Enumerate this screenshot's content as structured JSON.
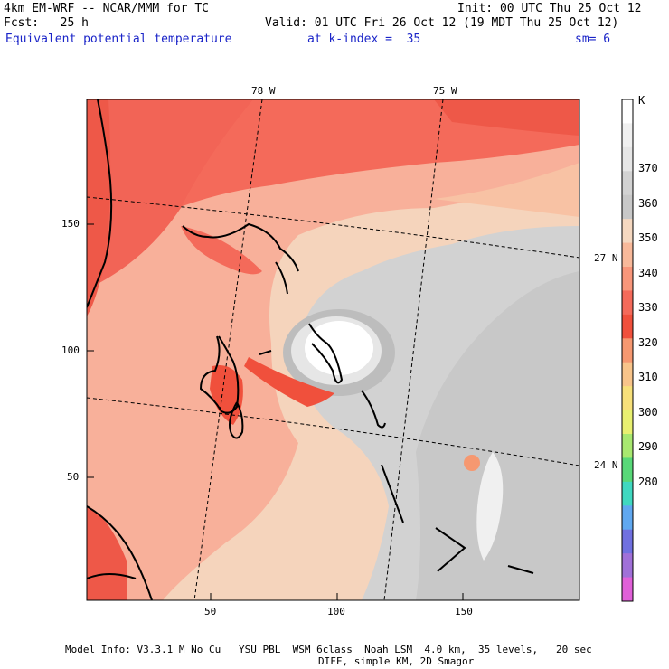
{
  "header": {
    "model": "4km EM-WRF -- NCAR/MMM for TC",
    "init": "Init: 00 UTC Thu 25 Oct 12",
    "fcst": "Fcst:   25 h",
    "valid": "Valid: 01 UTC Fri 26 Oct 12 (19 MDT Thu 25 Oct 12)",
    "field": "Equivalent potential temperature",
    "k_index": "at k-index =  35",
    "smooth": "sm= 6"
  },
  "map": {
    "lon_labels": [
      "78 W",
      "75 W"
    ],
    "lat_labels": [
      "27 N",
      "24 N"
    ],
    "x_ticks": [
      "50",
      "100",
      "150"
    ],
    "y_ticks": [
      "150",
      "100",
      "50"
    ]
  },
  "colorbar": {
    "unit": "K",
    "levels": [
      "370",
      "360",
      "350",
      "340",
      "330",
      "320",
      "310",
      "300",
      "290",
      "280"
    ],
    "colors": [
      "#ffffff",
      "#f0f0f0",
      "#e6e6e6",
      "#d2d2d2",
      "#c8c8c8",
      "#f5d8c0",
      "#f8b99a",
      "#f8967a",
      "#f46a5a",
      "#f0503c",
      "#f69870",
      "#f8c48a",
      "#f7e07a",
      "#e8f070",
      "#a8e870",
      "#58d878",
      "#40d8c0",
      "#60a8f0",
      "#7070e0",
      "#a070d8",
      "#e060d8"
    ]
  },
  "footer": {
    "line1": "Model Info: V3.3.1 M No Cu   YSU PBL  WSM 6class  Noah LSM  4.0 km,  35 levels,   20 sec",
    "line2": "DIFF, simple KM, 2D Smagor"
  }
}
